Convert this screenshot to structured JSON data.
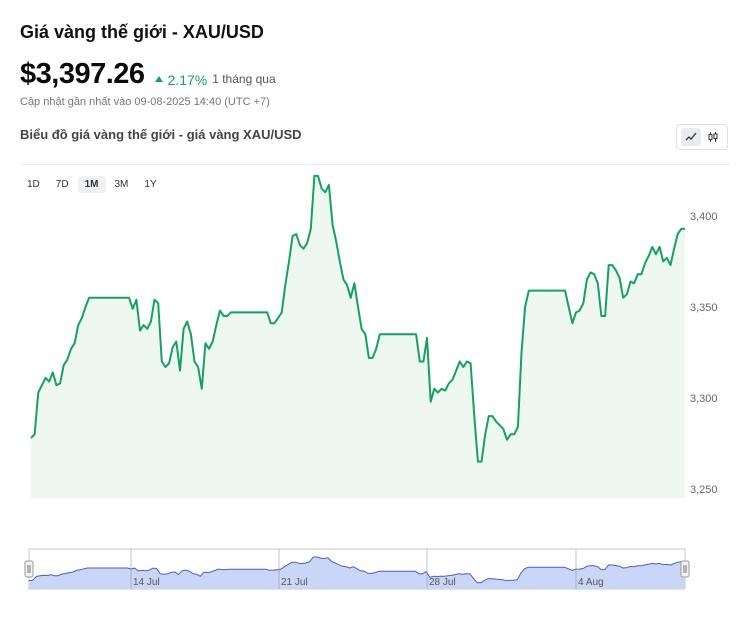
{
  "header": {
    "title": "Giá vàng thế giới - XAU/USD",
    "price": "$3,397.26",
    "change_pct": "2.17%",
    "change_period": "1 tháng qua",
    "updated": "Cập nhật gần nhất vào 09-08-2025 14:40 (UTC +7)"
  },
  "chart_section": {
    "title": "Biểu đồ giá vàng thế giới - giá vàng XAU/USD",
    "chart_mode": "line",
    "ranges": [
      "1D",
      "7D",
      "1M",
      "3M",
      "1Y"
    ],
    "active_range": "1M"
  },
  "colors": {
    "line": "#16a062",
    "area": "#eef8f1",
    "up": "#16a062",
    "navigator_fill": "#c9d6f6",
    "navigator_line": "#4a5fc2"
  },
  "chart_data": {
    "type": "area",
    "title": "",
    "xlabel": "",
    "ylabel": "",
    "ylim": [
      3245,
      3428
    ],
    "yticks": [
      3250,
      3300,
      3350,
      3400
    ],
    "grid": false,
    "navigator_labels": [
      "14 Jul",
      "21 Jul",
      "28 Jul",
      "4 Aug"
    ],
    "series": [
      {
        "values": [
          3278,
          3280,
          3303,
          3307,
          3311,
          3309,
          3314,
          3307,
          3308,
          3318,
          3321,
          3327,
          3330,
          3340,
          3344,
          3350,
          3355,
          3355,
          3355,
          3355,
          3355,
          3355,
          3355,
          3355,
          3355,
          3355,
          3355,
          3355,
          3349,
          3354,
          3337,
          3340,
          3338,
          3342,
          3354,
          3352,
          3320,
          3317,
          3319,
          3328,
          3331,
          3315,
          3338,
          3342,
          3335,
          3320,
          3317,
          3305,
          3330,
          3327,
          3331,
          3340,
          3348,
          3345,
          3345,
          3347,
          3347,
          3347,
          3347,
          3347,
          3347,
          3347,
          3347,
          3347,
          3347,
          3347,
          3341,
          3341,
          3344,
          3347,
          3362,
          3375,
          3389,
          3390,
          3384,
          3382,
          3385,
          3393,
          3422,
          3422,
          3415,
          3413,
          3417,
          3395,
          3386,
          3375,
          3365,
          3362,
          3355,
          3363,
          3350,
          3338,
          3335,
          3322,
          3322,
          3327,
          3335,
          3335,
          3335,
          3335,
          3335,
          3335,
          3335,
          3335,
          3335,
          3335,
          3335,
          3320,
          3320,
          3333,
          3298,
          3305,
          3303,
          3305,
          3304,
          3308,
          3310,
          3315,
          3320,
          3317,
          3320,
          3319,
          3290,
          3265,
          3265,
          3280,
          3290,
          3290,
          3287,
          3285,
          3283,
          3277,
          3280,
          3280,
          3284,
          3325,
          3350,
          3359,
          3359,
          3359,
          3359,
          3359,
          3359,
          3359,
          3359,
          3359,
          3359,
          3359,
          3350,
          3341,
          3347,
          3348,
          3352,
          3365,
          3369,
          3368,
          3363,
          3345,
          3345,
          3373,
          3373,
          3370,
          3366,
          3355,
          3357,
          3364,
          3363,
          3368,
          3368,
          3374,
          3378,
          3383,
          3379,
          3383,
          3375,
          3377,
          3373,
          3382,
          3390,
          3393,
          3393
        ]
      }
    ]
  }
}
